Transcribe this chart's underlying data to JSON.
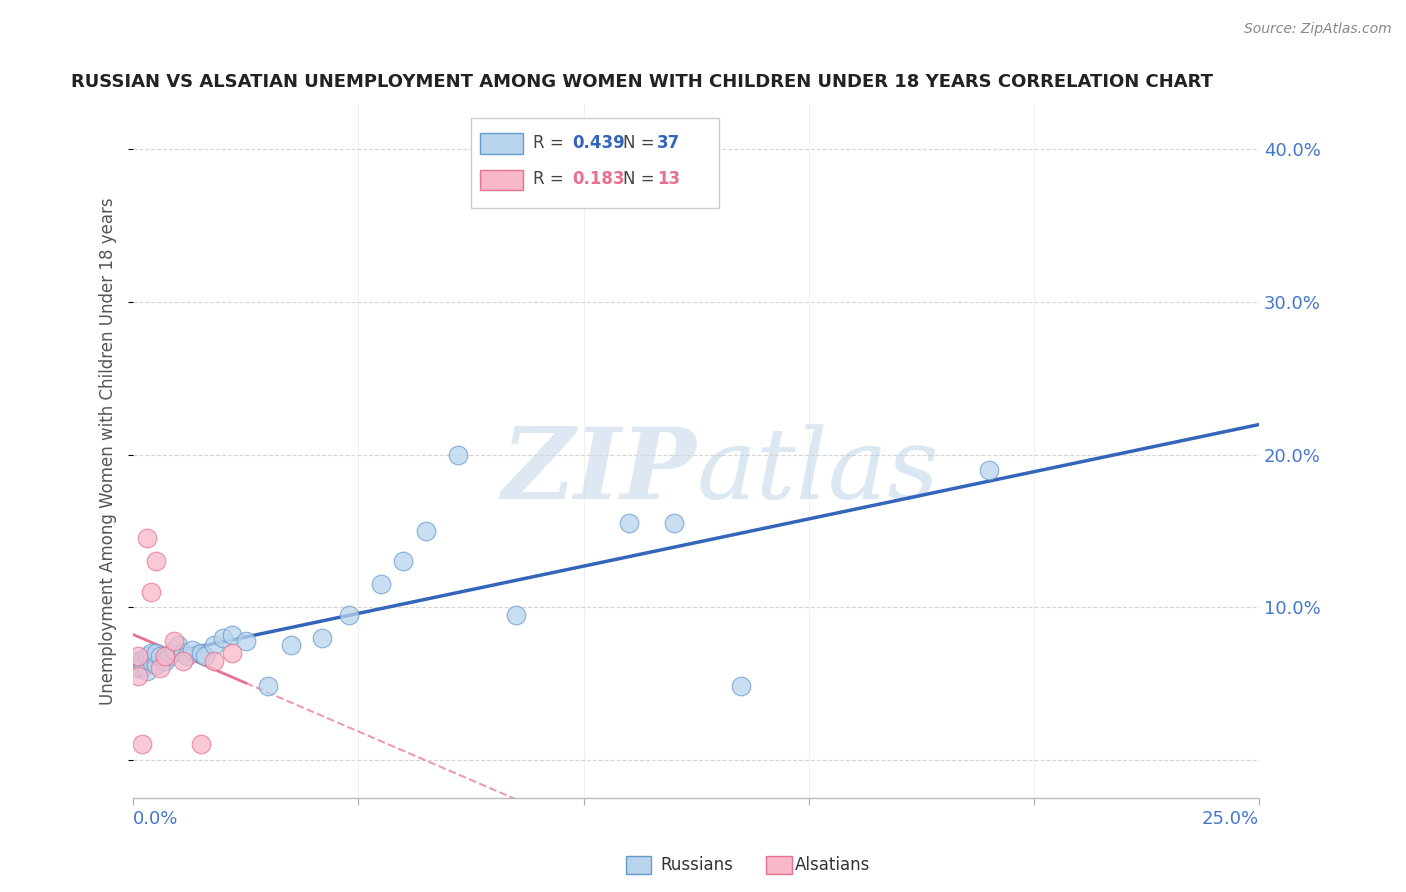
{
  "title": "RUSSIAN VS ALSATIAN UNEMPLOYMENT AMONG WOMEN WITH CHILDREN UNDER 18 YEARS CORRELATION CHART",
  "source": "Source: ZipAtlas.com",
  "ylabel": "Unemployment Among Women with Children Under 18 years",
  "xlim": [
    0.0,
    0.25
  ],
  "ylim": [
    -0.025,
    0.43
  ],
  "yticks": [
    0.0,
    0.1,
    0.2,
    0.3,
    0.4
  ],
  "ytick_labels": [
    "",
    "10.0%",
    "20.0%",
    "30.0%",
    "40.0%"
  ],
  "russians_x": [
    0.001,
    0.001,
    0.002,
    0.002,
    0.003,
    0.003,
    0.004,
    0.004,
    0.005,
    0.005,
    0.006,
    0.007,
    0.008,
    0.009,
    0.01,
    0.011,
    0.012,
    0.013,
    0.015,
    0.016,
    0.018,
    0.02,
    0.022,
    0.025,
    0.03,
    0.035,
    0.042,
    0.048,
    0.055,
    0.06,
    0.065,
    0.072,
    0.085,
    0.11,
    0.12,
    0.135,
    0.19
  ],
  "russians_y": [
    0.06,
    0.065,
    0.06,
    0.065,
    0.058,
    0.068,
    0.065,
    0.07,
    0.062,
    0.07,
    0.068,
    0.065,
    0.068,
    0.072,
    0.075,
    0.07,
    0.068,
    0.072,
    0.07,
    0.068,
    0.075,
    0.08,
    0.082,
    0.078,
    0.048,
    0.075,
    0.08,
    0.095,
    0.115,
    0.13,
    0.15,
    0.2,
    0.095,
    0.155,
    0.155,
    0.048,
    0.19
  ],
  "alsatians_x": [
    0.001,
    0.001,
    0.002,
    0.003,
    0.004,
    0.005,
    0.006,
    0.007,
    0.009,
    0.011,
    0.015,
    0.018,
    0.022
  ],
  "alsatians_y": [
    0.068,
    0.055,
    0.01,
    0.145,
    0.11,
    0.13,
    0.06,
    0.068,
    0.078,
    0.065,
    0.01,
    0.065,
    0.07
  ],
  "russian_fill_color": "#b8d4ec",
  "russian_edge_color": "#6699cc",
  "alsatian_fill_color": "#f8b8c8",
  "alsatian_edge_color": "#e87090",
  "russian_line_color": "#3366bb",
  "alsatian_line_color": "#e87090",
  "legend_r_russian": "0.439",
  "legend_n_russian": "37",
  "legend_r_alsatian": "0.183",
  "legend_n_alsatian": "13",
  "background_color": "#ffffff",
  "grid_color": "#cccccc",
  "watermark_color": "#dce8f4",
  "title_color": "#222222",
  "axis_label_color": "#4477cc"
}
